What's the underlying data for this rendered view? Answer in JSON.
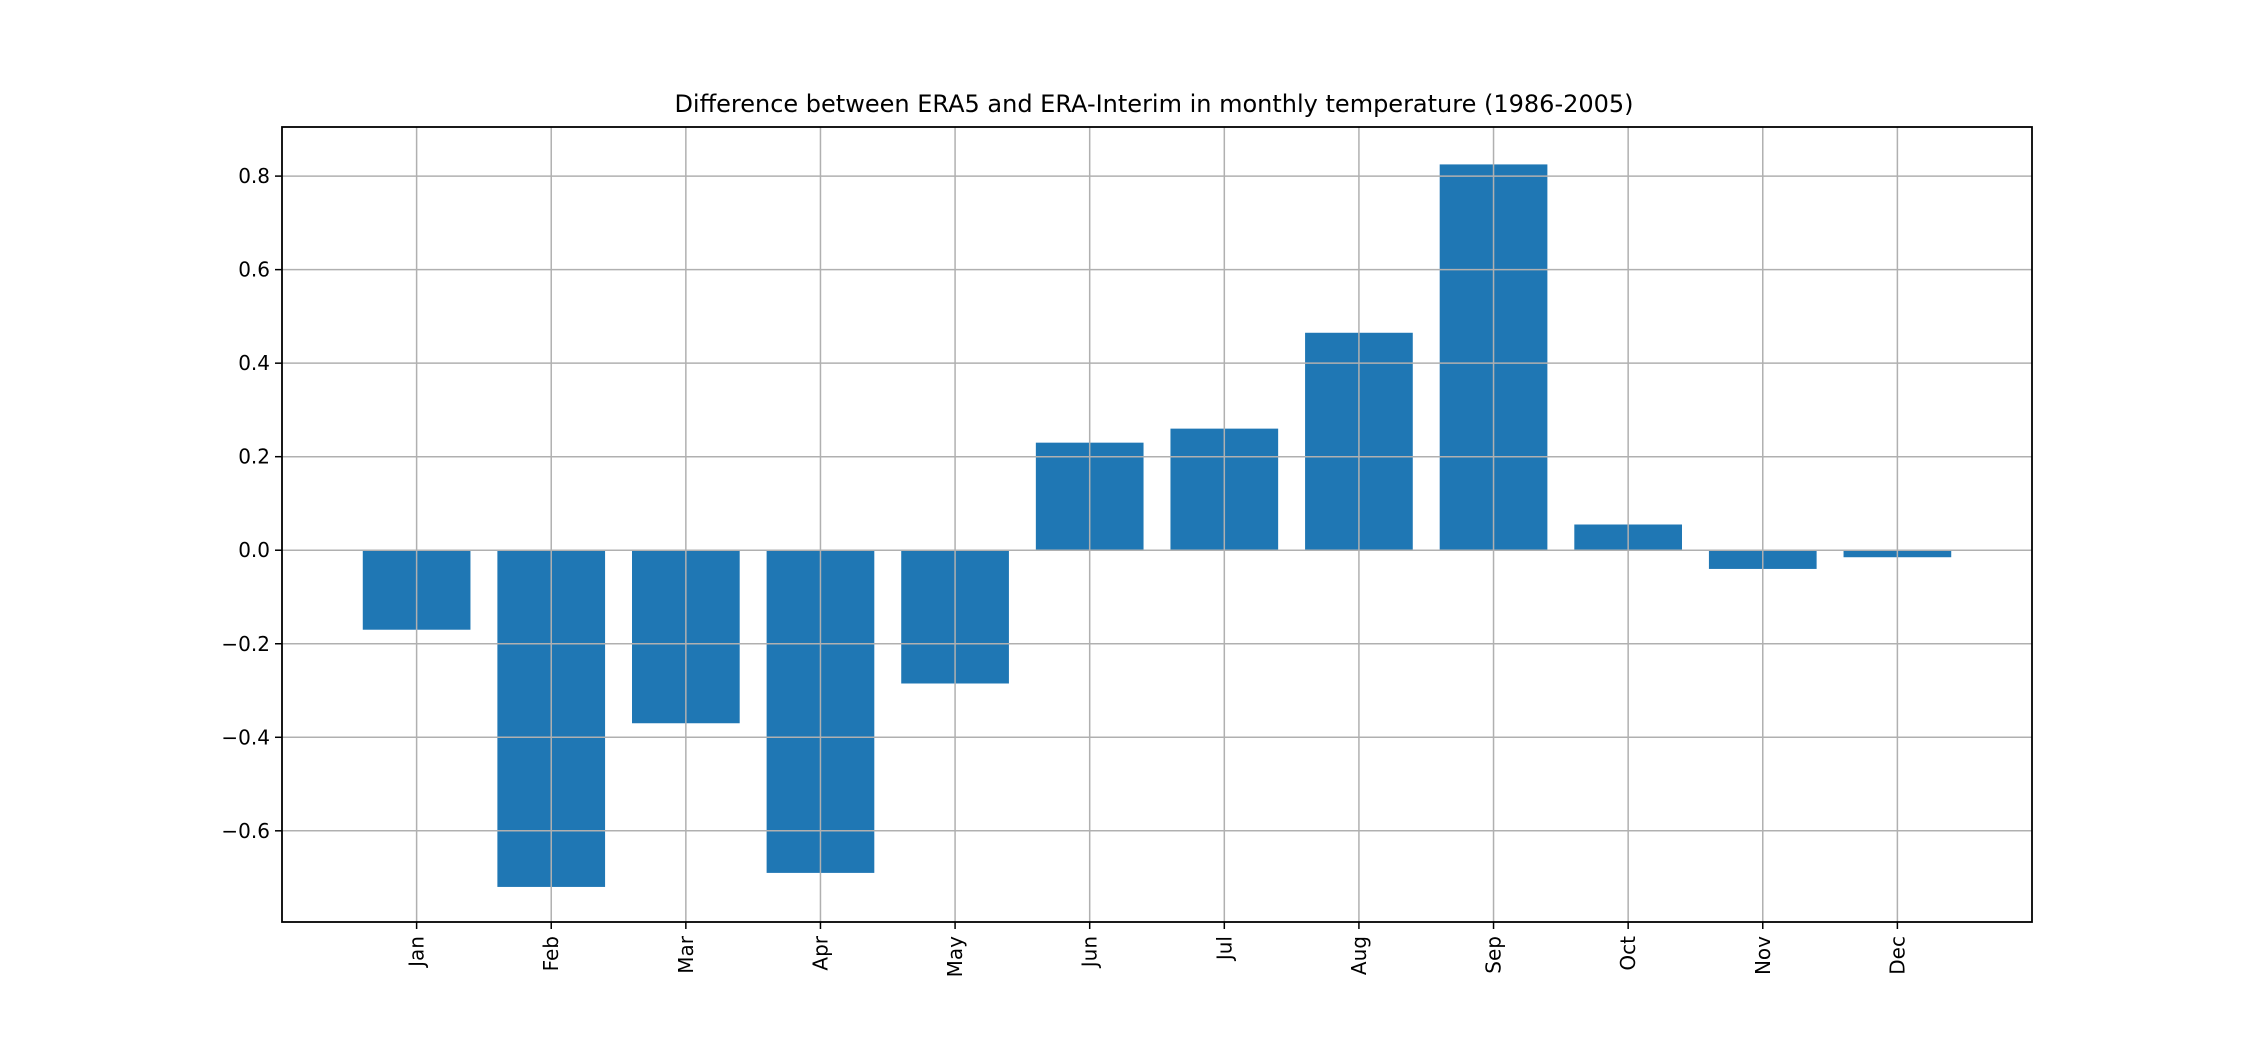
{
  "chart_data": {
    "type": "bar",
    "title": "Difference between ERA5 and ERA-Interim in monthly temperature (1986-2005)",
    "xlabel": "",
    "ylabel": "",
    "categories": [
      "Jan",
      "Feb",
      "Mar",
      "Apr",
      "May",
      "Jun",
      "Jul",
      "Aug",
      "Sep",
      "Oct",
      "Nov",
      "Dec"
    ],
    "values": [
      -0.17,
      -0.72,
      -0.37,
      -0.69,
      -0.285,
      0.23,
      0.26,
      0.465,
      0.825,
      0.055,
      -0.04,
      -0.015
    ],
    "ylim": [
      -0.795,
      0.905
    ],
    "yticks": [
      -0.6,
      -0.4,
      -0.2,
      0.0,
      0.2,
      0.4,
      0.6,
      0.8
    ],
    "ytick_labels": [
      "−0.6",
      "−0.4",
      "−0.2",
      "0.0",
      "0.2",
      "0.4",
      "0.6",
      "0.8"
    ],
    "grid": true,
    "legend": "none",
    "bar_color": "#1f77b4",
    "grid_color": "#b0b0b0",
    "tick_label_rotation": 90
  }
}
